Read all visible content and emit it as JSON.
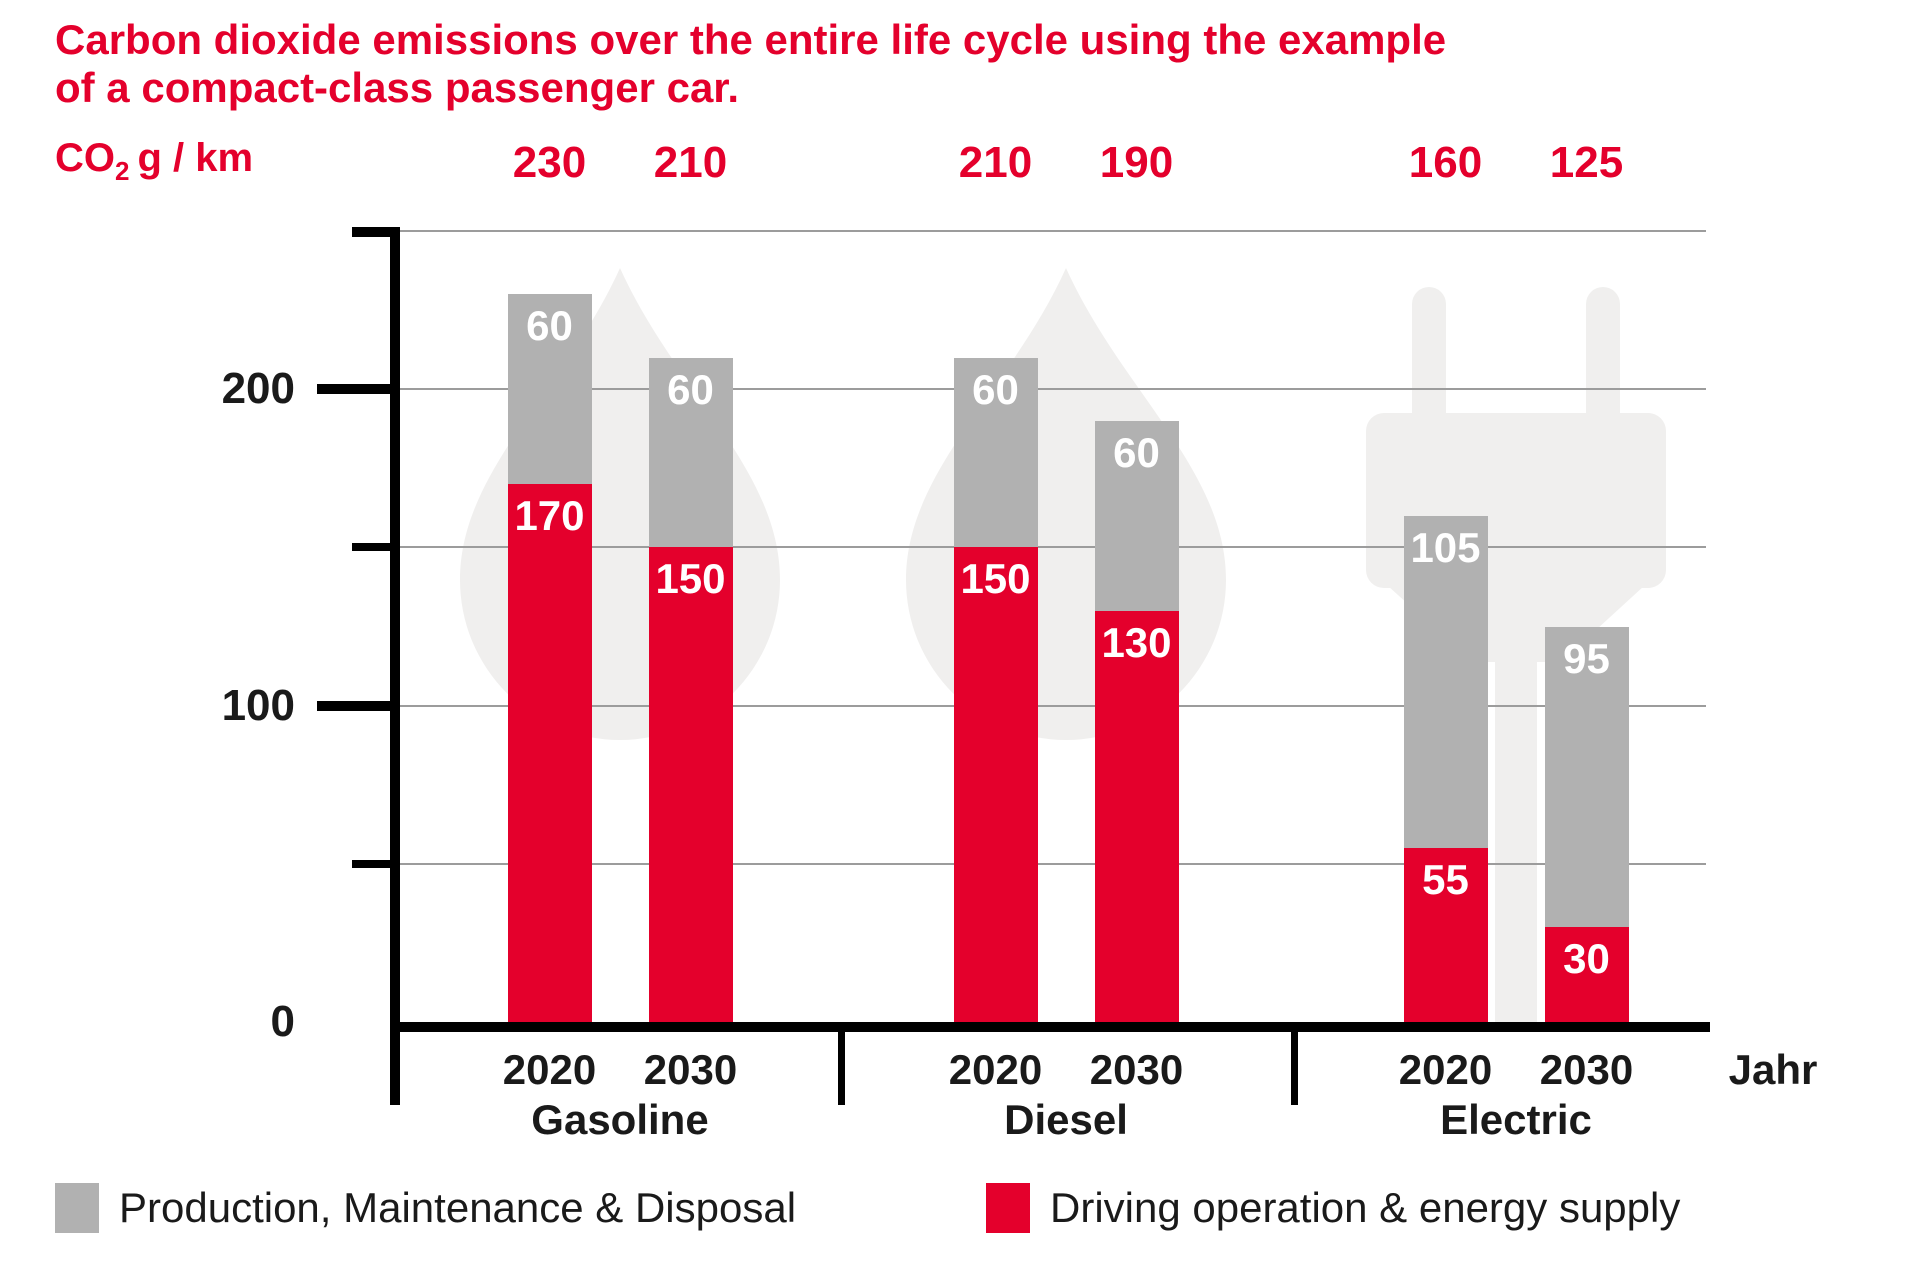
{
  "header": {
    "title_line1": "Carbon dioxide emissions over the entire life cycle using the example",
    "title_line2": "of a compact-class passenger car."
  },
  "colors": {
    "accent_red": "#e4002c",
    "bar_gray": "#b1b1b1",
    "watermark_gray": "#f0efee",
    "gridline_gray": "#9c9c9c",
    "axis_black": "#000000",
    "text_black": "#1a1a1a",
    "label_white": "#ffffff"
  },
  "chart_data": {
    "type": "bar",
    "stacked": true,
    "title": "Carbon dioxide emissions over the entire life cycle using the example of a compact-class passenger car.",
    "unit_label": {
      "prefix": "CO",
      "sub": "2",
      "suffix": "g / km"
    },
    "x_axis_label": "Jahr",
    "y_axis": {
      "max": 250,
      "labeled_ticks": [
        200,
        100,
        0
      ],
      "minor_ticks": [
        150,
        50
      ],
      "gridlines": [
        250,
        200,
        150,
        100,
        50
      ],
      "grid_on": true
    },
    "legend_position": "bottom",
    "legend": [
      {
        "name": "production",
        "label": "Production, Maintenance & Disposal",
        "color": "#b1b1b1"
      },
      {
        "name": "driving",
        "label": "Driving operation & energy supply",
        "color": "#e4002c"
      }
    ],
    "groups": [
      {
        "name": "Gasoline",
        "watermark": "fuel-drop-icon",
        "bars": [
          {
            "year": "2020",
            "production": 60,
            "driving": 170,
            "total": 230
          },
          {
            "year": "2030",
            "production": 60,
            "driving": 150,
            "total": 210
          }
        ]
      },
      {
        "name": "Diesel",
        "watermark": "fuel-drop-icon",
        "bars": [
          {
            "year": "2020",
            "production": 60,
            "driving": 150,
            "total": 210
          },
          {
            "year": "2030",
            "production": 60,
            "driving": 130,
            "total": 190
          }
        ]
      },
      {
        "name": "Electric",
        "watermark": "power-plug-icon",
        "bars": [
          {
            "year": "2020",
            "production": 105,
            "driving": 55,
            "total": 160
          },
          {
            "year": "2030",
            "production": 95,
            "driving": 30,
            "total": 125
          }
        ]
      }
    ]
  }
}
